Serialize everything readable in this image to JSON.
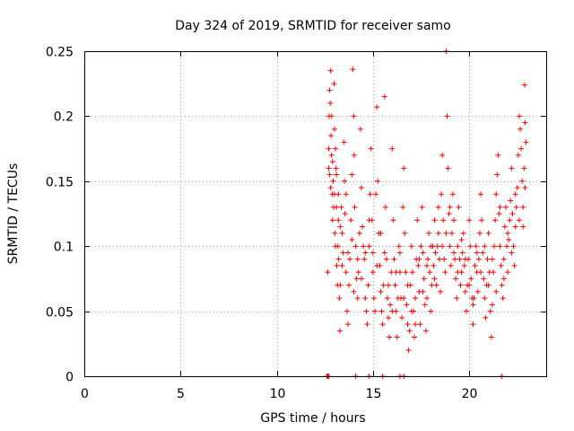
{
  "chart_data": {
    "type": "scatter",
    "title": "Day 324 of 2019, SRMTID for receiver samo",
    "xlabel": "GPS time / hours",
    "ylabel": "SRMTID / TECUs",
    "xlim": [
      0,
      24
    ],
    "ylim": [
      0,
      0.25
    ],
    "xticks": [
      0,
      5,
      10,
      15,
      20
    ],
    "xtick_labels": [
      "0",
      "5",
      "10",
      "15",
      "20"
    ],
    "yticks": [
      0,
      0.05,
      0.1,
      0.15,
      0.2,
      0.25
    ],
    "ytick_labels": [
      "0",
      "0.05",
      "0.1",
      "0.15",
      "0.2",
      "0.25"
    ],
    "grid": true,
    "marker": "+",
    "color": "#ff0000",
    "series": [
      {
        "name": "SRMTID",
        "points": [
          [
            12.6,
            0.0
          ],
          [
            12.65,
            0.0
          ],
          [
            12.7,
            0.0
          ],
          [
            14.1,
            0.0
          ],
          [
            14.8,
            0.0
          ],
          [
            15.5,
            0.0
          ],
          [
            16.4,
            0.0
          ],
          [
            16.6,
            0.0
          ],
          [
            21.7,
            0.0
          ],
          [
            12.65,
            0.08
          ],
          [
            12.7,
            0.16
          ],
          [
            12.72,
            0.2
          ],
          [
            12.75,
            0.22
          ],
          [
            12.78,
            0.21
          ],
          [
            12.8,
            0.235
          ],
          [
            12.82,
            0.185
          ],
          [
            12.85,
            0.17
          ],
          [
            12.88,
            0.14
          ],
          [
            12.9,
            0.12
          ],
          [
            12.93,
            0.15
          ],
          [
            12.95,
            0.13
          ],
          [
            12.98,
            0.225
          ],
          [
            13.0,
            0.19
          ],
          [
            13.02,
            0.11
          ],
          [
            13.05,
            0.1
          ],
          [
            13.08,
            0.16
          ],
          [
            13.1,
            0.13
          ],
          [
            13.12,
            0.085
          ],
          [
            13.15,
            0.07
          ],
          [
            13.18,
            0.1
          ],
          [
            13.2,
            0.12
          ],
          [
            13.22,
            0.09
          ],
          [
            13.25,
            0.06
          ],
          [
            13.28,
            0.035
          ],
          [
            13.3,
            0.07
          ],
          [
            13.35,
            0.13
          ],
          [
            13.4,
            0.11
          ],
          [
            13.45,
            0.095
          ],
          [
            13.5,
            0.18
          ],
          [
            13.52,
            0.15
          ],
          [
            13.55,
            0.125
          ],
          [
            13.6,
            0.08
          ],
          [
            13.65,
            0.05
          ],
          [
            13.7,
            0.04
          ],
          [
            13.75,
            0.07
          ],
          [
            13.8,
            0.09
          ],
          [
            13.85,
            0.12
          ],
          [
            13.9,
            0.155
          ],
          [
            13.95,
            0.236
          ],
          [
            14.0,
            0.2
          ],
          [
            14.02,
            0.17
          ],
          [
            14.05,
            0.13
          ],
          [
            14.1,
            0.1
          ],
          [
            14.15,
            0.075
          ],
          [
            14.2,
            0.06
          ],
          [
            14.25,
            0.08
          ],
          [
            14.3,
            0.11
          ],
          [
            14.35,
            0.19
          ],
          [
            14.4,
            0.145
          ],
          [
            14.45,
            0.115
          ],
          [
            14.5,
            0.1
          ],
          [
            14.55,
            0.09
          ],
          [
            14.6,
            0.06
          ],
          [
            14.65,
            0.05
          ],
          [
            14.7,
            0.04
          ],
          [
            14.75,
            0.07
          ],
          [
            14.8,
            0.1
          ],
          [
            14.85,
            0.14
          ],
          [
            14.9,
            0.175
          ],
          [
            14.95,
            0.12
          ],
          [
            15.0,
            0.08
          ],
          [
            15.05,
            0.06
          ],
          [
            15.1,
            0.05
          ],
          [
            15.15,
            0.14
          ],
          [
            15.2,
            0.207
          ],
          [
            15.25,
            0.15
          ],
          [
            15.3,
            0.11
          ],
          [
            15.35,
            0.085
          ],
          [
            15.4,
            0.065
          ],
          [
            15.45,
            0.05
          ],
          [
            15.5,
            0.04
          ],
          [
            15.55,
            0.07
          ],
          [
            15.6,
            0.215
          ],
          [
            15.65,
            0.13
          ],
          [
            15.7,
            0.09
          ],
          [
            15.75,
            0.06
          ],
          [
            15.8,
            0.045
          ],
          [
            15.85,
            0.03
          ],
          [
            15.9,
            0.055
          ],
          [
            15.95,
            0.08
          ],
          [
            16.0,
            0.175
          ],
          [
            16.05,
            0.12
          ],
          [
            16.1,
            0.09
          ],
          [
            16.15,
            0.07
          ],
          [
            16.2,
            0.05
          ],
          [
            16.25,
            0.03
          ],
          [
            16.3,
            0.06
          ],
          [
            16.35,
            0.1
          ],
          [
            16.4,
            0.08
          ],
          [
            16.45,
            0.06
          ],
          [
            16.5,
            0.045
          ],
          [
            16.55,
            0.13
          ],
          [
            16.6,
            0.16
          ],
          [
            16.65,
            0.11
          ],
          [
            16.7,
            0.08
          ],
          [
            16.75,
            0.055
          ],
          [
            16.8,
            0.04
          ],
          [
            16.85,
            0.02
          ],
          [
            16.9,
            0.035
          ],
          [
            16.95,
            0.07
          ],
          [
            17.0,
            0.1
          ],
          [
            17.05,
            0.08
          ],
          [
            17.1,
            0.05
          ],
          [
            17.15,
            0.03
          ],
          [
            17.2,
            0.06
          ],
          [
            17.25,
            0.09
          ],
          [
            17.3,
            0.12
          ],
          [
            17.35,
            0.085
          ],
          [
            17.4,
            0.065
          ],
          [
            17.45,
            0.04
          ],
          [
            17.5,
            0.1
          ],
          [
            17.55,
            0.13
          ],
          [
            17.6,
            0.095
          ],
          [
            17.65,
            0.075
          ],
          [
            17.7,
            0.055
          ],
          [
            17.75,
            0.035
          ],
          [
            17.8,
            0.06
          ],
          [
            17.85,
            0.09
          ],
          [
            17.9,
            0.11
          ],
          [
            17.95,
            0.08
          ],
          [
            18.0,
            0.05
          ],
          [
            18.05,
            0.07
          ],
          [
            18.1,
            0.1
          ],
          [
            18.15,
            0.085
          ],
          [
            18.2,
            0.12
          ],
          [
            18.25,
            0.095
          ],
          [
            18.3,
            0.07
          ],
          [
            18.35,
            0.1
          ],
          [
            18.4,
            0.13
          ],
          [
            18.45,
            0.09
          ],
          [
            18.5,
            0.065
          ],
          [
            18.55,
            0.14
          ],
          [
            18.6,
            0.17
          ],
          [
            18.65,
            0.12
          ],
          [
            18.7,
            0.09
          ],
          [
            18.75,
            0.08
          ],
          [
            18.8,
            0.25
          ],
          [
            18.85,
            0.2
          ],
          [
            18.9,
            0.16
          ],
          [
            18.95,
            0.125
          ],
          [
            19.0,
            0.1
          ],
          [
            19.05,
            0.085
          ],
          [
            19.1,
            0.11
          ],
          [
            19.15,
            0.14
          ],
          [
            19.2,
            0.12
          ],
          [
            19.25,
            0.09
          ],
          [
            19.3,
            0.075
          ],
          [
            19.35,
            0.06
          ],
          [
            19.4,
            0.1
          ],
          [
            19.45,
            0.13
          ],
          [
            19.5,
            0.09
          ],
          [
            19.55,
            0.07
          ],
          [
            19.6,
            0.08
          ],
          [
            19.65,
            0.095
          ],
          [
            19.7,
            0.11
          ],
          [
            19.75,
            0.085
          ],
          [
            19.8,
            0.065
          ],
          [
            19.85,
            0.05
          ],
          [
            19.9,
            0.07
          ],
          [
            19.95,
            0.09
          ],
          [
            20.0,
            0.12
          ],
          [
            20.05,
            0.1
          ],
          [
            20.1,
            0.075
          ],
          [
            20.15,
            0.06
          ],
          [
            20.2,
            0.04
          ],
          [
            20.25,
            0.06
          ],
          [
            20.3,
            0.085
          ],
          [
            20.35,
            0.1
          ],
          [
            20.4,
            0.08
          ],
          [
            20.45,
            0.065
          ],
          [
            20.5,
            0.09
          ],
          [
            20.55,
            0.11
          ],
          [
            20.6,
            0.14
          ],
          [
            20.65,
            0.12
          ],
          [
            20.7,
            0.095
          ],
          [
            20.75,
            0.075
          ],
          [
            20.8,
            0.06
          ],
          [
            20.85,
            0.045
          ],
          [
            20.9,
            0.07
          ],
          [
            20.95,
            0.09
          ],
          [
            21.0,
            0.11
          ],
          [
            21.05,
            0.08
          ],
          [
            21.1,
            0.05
          ],
          [
            21.15,
            0.03
          ],
          [
            21.2,
            0.055
          ],
          [
            21.25,
            0.08
          ],
          [
            21.3,
            0.1
          ],
          [
            21.35,
            0.12
          ],
          [
            21.4,
            0.14
          ],
          [
            21.45,
            0.155
          ],
          [
            21.5,
            0.17
          ],
          [
            21.55,
            0.125
          ],
          [
            21.6,
            0.1
          ],
          [
            21.65,
            0.085
          ],
          [
            21.7,
            0.07
          ],
          [
            21.75,
            0.06
          ],
          [
            21.8,
            0.09
          ],
          [
            21.85,
            0.115
          ],
          [
            21.9,
            0.13
          ],
          [
            21.95,
            0.1
          ],
          [
            22.0,
            0.08
          ],
          [
            22.05,
            0.105
          ],
          [
            22.1,
            0.12
          ],
          [
            22.15,
            0.135
          ],
          [
            22.2,
            0.16
          ],
          [
            22.25,
            0.125
          ],
          [
            22.3,
            0.1
          ],
          [
            22.35,
            0.085
          ],
          [
            22.4,
            0.115
          ],
          [
            22.45,
            0.13
          ],
          [
            22.5,
            0.145
          ],
          [
            22.55,
            0.17
          ],
          [
            22.6,
            0.2
          ],
          [
            22.65,
            0.19
          ],
          [
            22.7,
            0.175
          ],
          [
            22.75,
            0.15
          ],
          [
            22.8,
            0.13
          ],
          [
            22.85,
            0.16
          ],
          [
            22.88,
            0.224
          ],
          [
            22.9,
            0.195
          ],
          [
            22.95,
            0.18
          ],
          [
            12.7,
            0.175
          ],
          [
            12.75,
            0.155
          ],
          [
            12.8,
            0.145
          ],
          [
            12.85,
            0.2
          ],
          [
            12.9,
            0.165
          ],
          [
            13.0,
            0.14
          ],
          [
            13.05,
            0.175
          ],
          [
            13.1,
            0.155
          ],
          [
            13.2,
            0.14
          ],
          [
            13.3,
            0.115
          ],
          [
            13.4,
            0.085
          ],
          [
            13.6,
            0.14
          ],
          [
            13.7,
            0.095
          ],
          [
            13.9,
            0.105
          ],
          [
            14.0,
            0.065
          ],
          [
            14.2,
            0.09
          ],
          [
            14.4,
            0.075
          ],
          [
            14.6,
            0.095
          ],
          [
            14.8,
            0.12
          ],
          [
            15.0,
            0.095
          ],
          [
            15.2,
            0.085
          ],
          [
            15.4,
            0.11
          ],
          [
            15.6,
            0.095
          ],
          [
            15.8,
            0.07
          ],
          [
            16.0,
            0.05
          ],
          [
            16.2,
            0.08
          ],
          [
            16.4,
            0.095
          ],
          [
            16.6,
            0.06
          ],
          [
            16.8,
            0.07
          ],
          [
            17.0,
            0.05
          ],
          [
            17.2,
            0.04
          ],
          [
            17.4,
            0.09
          ],
          [
            17.6,
            0.065
          ],
          [
            17.8,
            0.085
          ],
          [
            18.0,
            0.1
          ],
          [
            18.2,
            0.075
          ],
          [
            18.4,
            0.11
          ],
          [
            18.6,
            0.1
          ],
          [
            18.8,
            0.11
          ],
          [
            19.0,
            0.13
          ],
          [
            19.2,
            0.095
          ],
          [
            19.4,
            0.08
          ],
          [
            19.6,
            0.105
          ],
          [
            19.8,
            0.09
          ],
          [
            20.0,
            0.07
          ],
          [
            20.2,
            0.055
          ],
          [
            20.4,
            0.095
          ],
          [
            20.6,
            0.08
          ],
          [
            20.8,
            0.1
          ],
          [
            21.0,
            0.07
          ],
          [
            21.2,
            0.09
          ],
          [
            21.4,
            0.065
          ],
          [
            21.6,
            0.13
          ],
          [
            21.8,
            0.075
          ],
          [
            22.0,
            0.11
          ],
          [
            22.2,
            0.095
          ],
          [
            22.4,
            0.14
          ],
          [
            22.6,
            0.12
          ],
          [
            22.8,
            0.115
          ],
          [
            22.9,
            0.145
          ]
        ]
      }
    ]
  }
}
